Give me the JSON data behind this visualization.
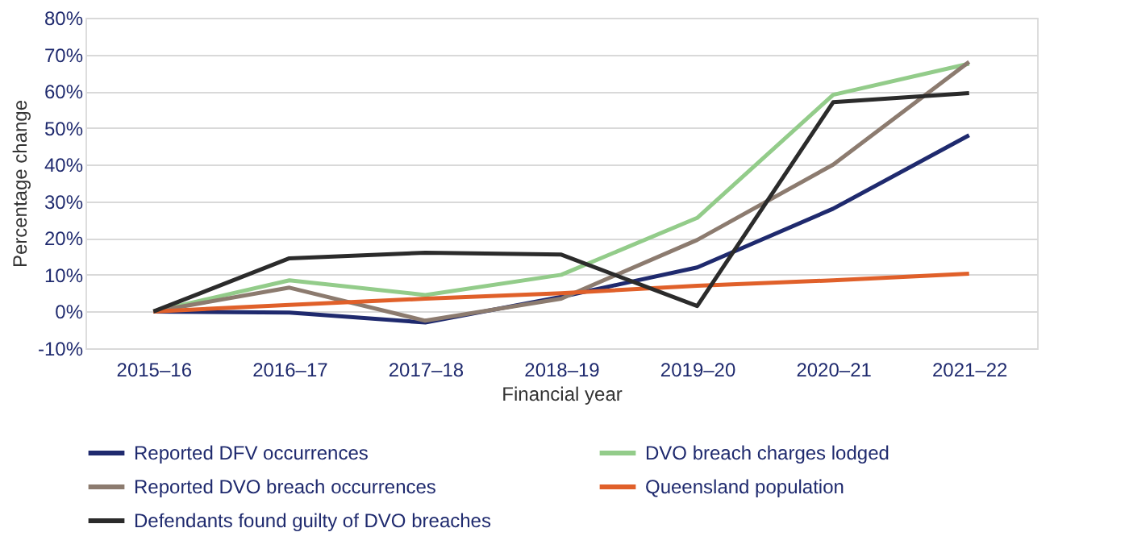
{
  "chart_data": {
    "type": "line",
    "xlabel": "Financial year",
    "ylabel": "Percentage change",
    "categories": [
      "2015–16",
      "2016–17",
      "2017–18",
      "2018–19",
      "2019–20",
      "2020–21",
      "2021–22"
    ],
    "series": [
      {
        "name": "Reported DFV occurrences",
        "color": "#1f2a6e",
        "values": [
          0,
          -0.3,
          -3,
          4,
          12,
          28,
          48
        ]
      },
      {
        "name": "DVO breach charges lodged",
        "color": "#93cc8a",
        "values": [
          0,
          8.5,
          4.5,
          10,
          25.5,
          59,
          67.5
        ]
      },
      {
        "name": "Reported DVO breach occurrences",
        "color": "#8c7b6f",
        "values": [
          0,
          6.5,
          -2.5,
          3.5,
          19.5,
          40,
          68
        ]
      },
      {
        "name": "Queensland population",
        "color": "#e0602a",
        "values": [
          0,
          1.8,
          3.5,
          5,
          7,
          8.5,
          10.3
        ]
      },
      {
        "name": "Defendants found guilty of DVO breaches",
        "color": "#2b2b2b",
        "values": [
          0,
          14.5,
          16,
          15.5,
          1.5,
          57,
          59.5
        ]
      }
    ],
    "ylim": [
      -10,
      80
    ],
    "yticks": [
      {
        "value": -10,
        "label": "-10%"
      },
      {
        "value": 0,
        "label": "0%"
      },
      {
        "value": 10,
        "label": "10%"
      },
      {
        "value": 20,
        "label": "20%"
      },
      {
        "value": 30,
        "label": "30%"
      },
      {
        "value": 40,
        "label": "40%"
      },
      {
        "value": 50,
        "label": "50%"
      },
      {
        "value": 60,
        "label": "60%"
      },
      {
        "value": 70,
        "label": "70%"
      },
      {
        "value": 80,
        "label": "80%"
      }
    ],
    "grid": "y",
    "legend": "bottom",
    "marker": "none",
    "line_style": "solid"
  }
}
